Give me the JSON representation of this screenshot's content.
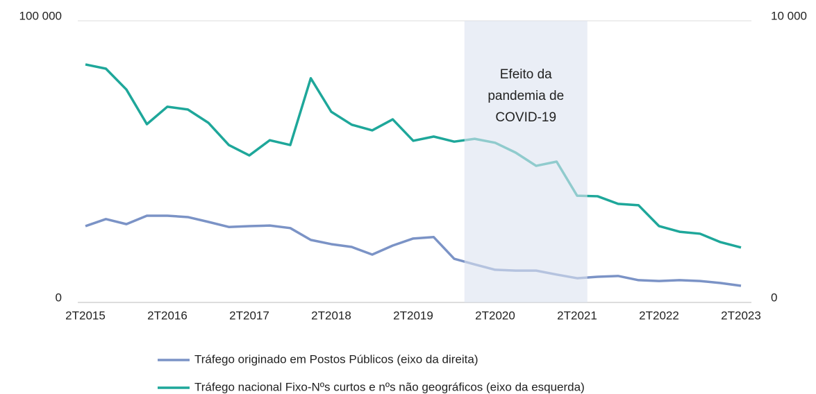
{
  "chart_data": {
    "type": "line",
    "categories": [
      "2T2015",
      null,
      null,
      null,
      "2T2016",
      null,
      null,
      null,
      "2T2017",
      null,
      null,
      null,
      "2T2018",
      null,
      null,
      null,
      "2T2019",
      null,
      null,
      null,
      "2T2020",
      null,
      null,
      null,
      "2T2021",
      null,
      null,
      null,
      "2T2022",
      null,
      null,
      null,
      "2T2023"
    ],
    "series": [
      {
        "name": "Tráfego originado em Postos Públicos (eixo da direita)",
        "color": "#7b93c6",
        "axis": "y2",
        "values": [
          2710,
          2960,
          2780,
          3080,
          3080,
          3030,
          2860,
          2680,
          2710,
          2730,
          2640,
          2220,
          2070,
          1970,
          1700,
          2020,
          2270,
          2320,
          1550,
          1350,
          1160,
          1130,
          1130,
          990,
          860,
          910,
          940,
          790,
          760,
          790,
          760,
          690,
          590
        ]
      },
      {
        "name": "Tráfego nacional Fixo-Nºs curtos e nºs não geográficos (eixo da esquerda)",
        "color": "#1ea79a",
        "values": [
          84500,
          83000,
          75600,
          63300,
          69500,
          68500,
          63800,
          55900,
          52200,
          57600,
          55900,
          79600,
          67700,
          63100,
          61100,
          65000,
          57400,
          58900,
          57100,
          58100,
          56700,
          53200,
          48500,
          50000,
          37900,
          37700,
          35000,
          34500,
          27100,
          25100,
          24400,
          21400,
          19500
        ]
      }
    ],
    "ylim": [
      0,
      100000
    ],
    "yticks": [
      0,
      {
        "value": 100000,
        "label": "100 000"
      }
    ],
    "y2lim": [
      0,
      10000
    ],
    "y2ticks": [
      0,
      {
        "value": 10000,
        "label": "10 000"
      }
    ],
    "annotation": {
      "lines": [
        "Efeito da",
        "pandemia de",
        "COVID-19"
      ],
      "x_range": [
        18.5,
        24.5
      ]
    },
    "grid": true
  }
}
